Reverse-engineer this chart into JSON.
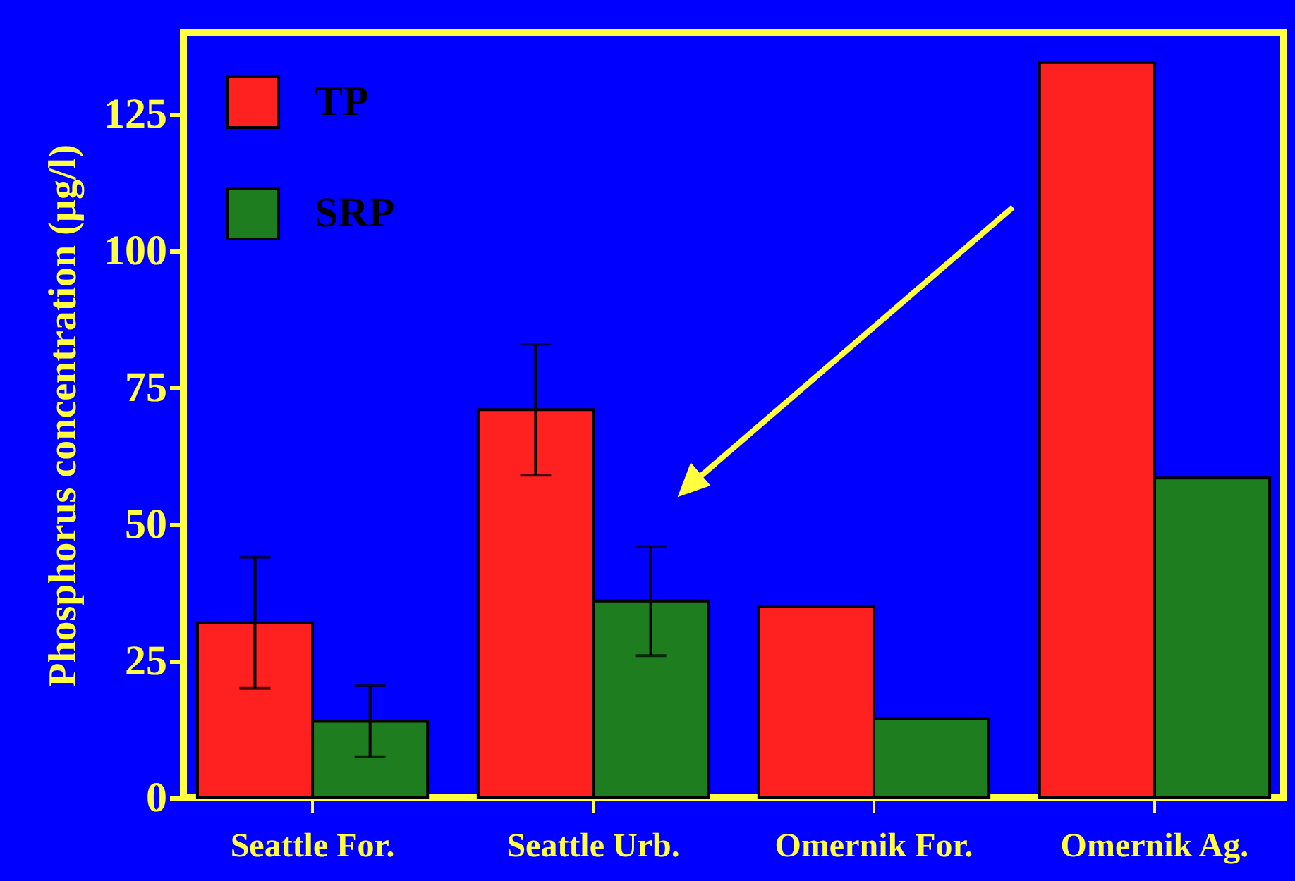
{
  "chart_data": {
    "type": "bar",
    "ylabel": "Phosphorus concentration (µg/l)",
    "categories": [
      "Seattle For.",
      "Seattle Urb.",
      "Omernik For.",
      "Omernik Ag."
    ],
    "series": [
      {
        "name": "TP",
        "color": "#ff2020",
        "values": [
          32,
          71,
          35,
          134.5
        ],
        "errors": [
          12,
          12,
          null,
          null
        ]
      },
      {
        "name": "SRP",
        "color": "#1e7d1e",
        "values": [
          14,
          36,
          14.5,
          58.5
        ],
        "errors": [
          6.5,
          10,
          null,
          null
        ]
      }
    ],
    "ylim": [
      0,
      140
    ],
    "yticks": [
      0,
      25,
      50,
      75,
      100,
      125
    ],
    "grid": false,
    "legend": "top left"
  }
}
